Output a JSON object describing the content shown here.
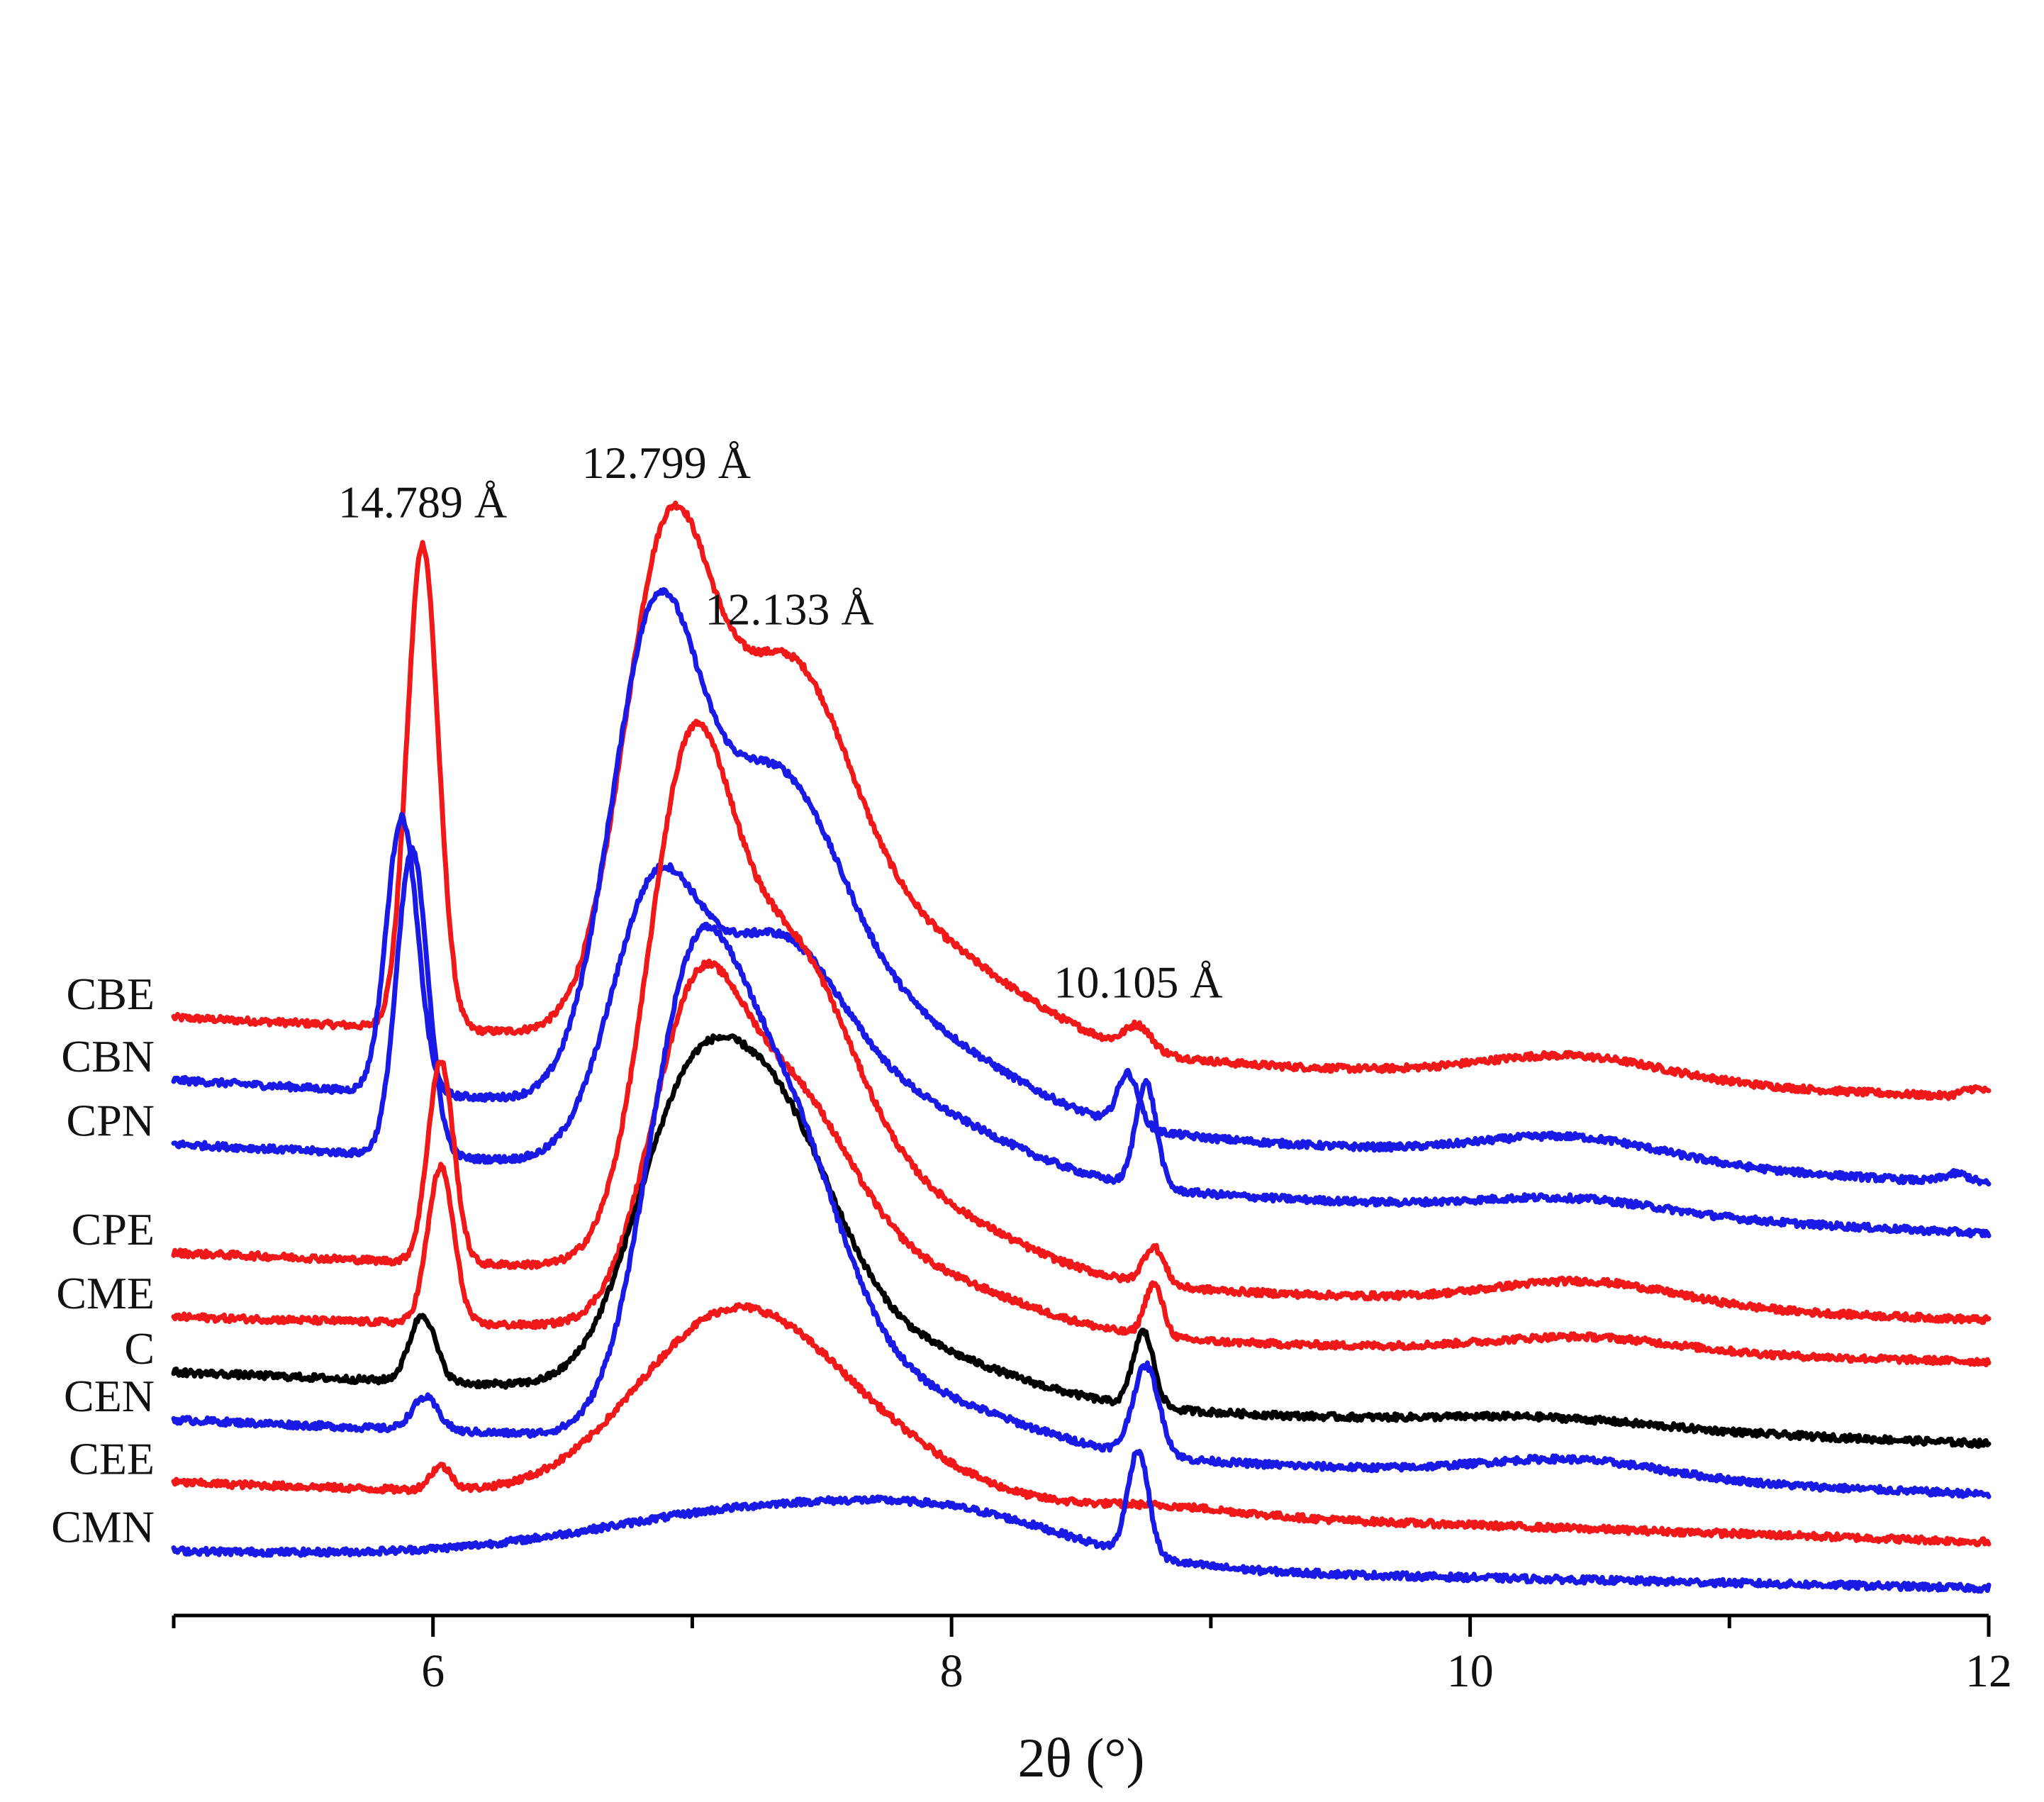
{
  "chart_data": {
    "type": "line",
    "title": "",
    "xlabel": "2θ (°)",
    "ylabel": "",
    "xlim": [
      5,
      12
    ],
    "ylim": [
      0,
      100
    ],
    "x_ticks": [
      6,
      8,
      10,
      12
    ],
    "x_tick_labels": [
      "6",
      "8",
      "10",
      "12"
    ],
    "x_minor_ticks": [
      5,
      7,
      9,
      11
    ],
    "grid": false,
    "legend": "none (series labelled at left of each trace)",
    "colors": {
      "red": "#f01818",
      "blue": "#1a1ae6",
      "black": "#000000"
    },
    "series": [
      {
        "name": "CBE",
        "color": "#f01818",
        "baseline": 39.8,
        "tail": -5.4,
        "peaks": [
          [
            5.96,
            0.06,
            32.5
          ],
          [
            6.9,
            0.17,
            30.5
          ],
          [
            7.35,
            0.24,
            20.0
          ],
          [
            7.75,
            0.45,
            8.0
          ],
          [
            8.72,
            0.05,
            1.6
          ],
          [
            10.4,
            0.35,
            1.6
          ],
          [
            11.95,
            0.05,
            0.6
          ]
        ],
        "labels": [
          {
            "text": "14.789 Å",
            "x": 5.96
          },
          {
            "text": "12.799 Å",
            "x": 6.9
          },
          {
            "text": "12.133 Å",
            "x": 7.35
          },
          {
            "text": "10.105 Å",
            "x": 8.72
          }
        ]
      },
      {
        "name": "CBN",
        "color": "#1a1ae6",
        "baseline": 35.6,
        "tail": -7.0,
        "peaks": [
          [
            5.88,
            0.06,
            18.5
          ],
          [
            6.85,
            0.17,
            29.5
          ],
          [
            7.3,
            0.25,
            18.0
          ],
          [
            7.7,
            0.45,
            7.0
          ],
          [
            8.68,
            0.04,
            3.5
          ],
          [
            10.4,
            0.35,
            1.6
          ],
          [
            11.88,
            0.05,
            0.6
          ]
        ]
      },
      {
        "name": "CPN",
        "color": "#1a1ae6",
        "baseline": 31.3,
        "tail": -6.0,
        "peaks": [
          [
            5.92,
            0.06,
            20.5
          ],
          [
            6.85,
            0.17,
            16.5
          ],
          [
            7.3,
            0.25,
            12.0
          ],
          [
            7.7,
            0.45,
            5.5
          ],
          [
            8.75,
            0.04,
            7.0
          ],
          [
            10.4,
            0.35,
            1.0
          ]
        ]
      },
      {
        "name": "CPE",
        "color": "#f01818",
        "baseline": 24.0,
        "tail": -4.5,
        "peaks": [
          [
            6.03,
            0.05,
            13.5
          ],
          [
            6.98,
            0.16,
            29.0
          ],
          [
            7.35,
            0.24,
            17.5
          ],
          [
            7.7,
            0.45,
            6.0
          ],
          [
            8.78,
            0.04,
            2.5
          ],
          [
            10.45,
            0.35,
            1.6
          ]
        ]
      },
      {
        "name": "CME",
        "color": "#f01818",
        "baseline": 19.7,
        "tail": -3.0,
        "peaks": [
          [
            6.03,
            0.05,
            10.5
          ],
          [
            7.0,
            0.17,
            18.0
          ],
          [
            7.35,
            0.24,
            13.0
          ],
          [
            7.75,
            0.45,
            4.5
          ],
          [
            8.78,
            0.035,
            3.5
          ],
          [
            10.45,
            0.35,
            1.0
          ]
        ]
      },
      {
        "name": "C",
        "color": "#000000",
        "baseline": 16.0,
        "tail": -4.8,
        "peaks": [
          [
            5.96,
            0.05,
            4.5
          ],
          [
            6.95,
            0.2,
            14.5
          ],
          [
            7.3,
            0.24,
            16.0
          ],
          [
            7.7,
            0.45,
            4.0
          ],
          [
            8.74,
            0.04,
            5.0
          ],
          [
            10.3,
            0.4,
            0.6
          ]
        ]
      },
      {
        "name": "CEN",
        "color": "#1a1ae6",
        "baseline": 12.8,
        "tail": -5.0,
        "peaks": [
          [
            5.97,
            0.05,
            2.2
          ],
          [
            6.98,
            0.17,
            23.0
          ],
          [
            7.3,
            0.24,
            21.0
          ],
          [
            7.75,
            0.45,
            4.0
          ],
          [
            8.75,
            0.05,
            6.0
          ],
          [
            10.4,
            0.35,
            1.2
          ]
        ]
      },
      {
        "name": "CEE",
        "color": "#f01818",
        "baseline": 8.6,
        "tail": -4.0,
        "peaks": [
          [
            6.03,
            0.04,
            1.6
          ],
          [
            7.1,
            0.35,
            10.0
          ],
          [
            7.55,
            0.4,
            5.0
          ],
          [
            8.8,
            0.3,
            0.6
          ]
        ]
      },
      {
        "name": "CMN",
        "color": "#1a1ae6",
        "baseline": 4.0,
        "tail": -2.5,
        "peaks": [
          [
            7.4,
            0.7,
            3.8
          ],
          [
            8.1,
            0.4,
            1.5
          ],
          [
            8.72,
            0.04,
            7.0
          ]
        ]
      }
    ]
  }
}
